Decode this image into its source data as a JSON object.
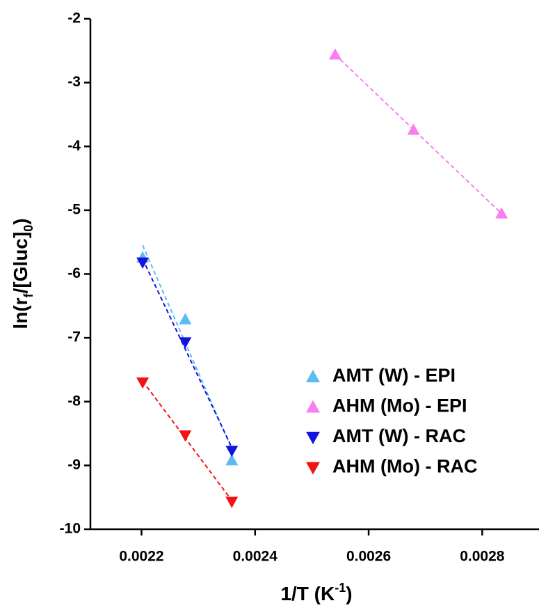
{
  "chart_data": {
    "type": "scatter",
    "xlabel": [
      {
        "text": "1/T (K"
      },
      {
        "text": "-1",
        "shift": "super"
      },
      {
        "text": ")"
      }
    ],
    "ylabel": [
      {
        "text": "ln(r"
      },
      {
        "text": "f",
        "shift": "sub"
      },
      {
        "text": "/[Gluc]"
      },
      {
        "text": "0",
        "shift": "sub"
      },
      {
        "text": ")"
      }
    ],
    "xlim": [
      0.00211,
      0.0029
    ],
    "ylim": [
      -10,
      -2
    ],
    "xticks": [
      0.0022,
      0.0024,
      0.0026,
      0.0028
    ],
    "yticks": [
      -2,
      -3,
      -4,
      -5,
      -6,
      -7,
      -8,
      -9,
      -10
    ],
    "trendline": true,
    "legend": "lower right",
    "series": [
      {
        "name": "AMT (W) - EPI",
        "color": "#5bbcf0",
        "marker": "^",
        "x": [
          0.002202,
          0.002277,
          0.002359
        ],
        "values": [
          -5.74,
          -6.71,
          -8.92
        ]
      },
      {
        "name": "AHM (Mo) - EPI",
        "color": "#f77ff0",
        "marker": "^",
        "x": [
          0.002541,
          0.002679,
          0.002834
        ],
        "values": [
          -2.56,
          -3.74,
          -5.05
        ]
      },
      {
        "name": "AMT (W) - RAC",
        "color": "#1414e0",
        "marker": "v",
        "x": [
          0.002202,
          0.002277,
          0.002359
        ],
        "values": [
          -5.82,
          -7.07,
          -8.77
        ]
      },
      {
        "name": "AHM (Mo) - RAC",
        "color": "#f01414",
        "marker": "v",
        "x": [
          0.002202,
          0.002277,
          0.002359
        ],
        "values": [
          -7.7,
          -8.53,
          -9.57
        ]
      }
    ]
  }
}
